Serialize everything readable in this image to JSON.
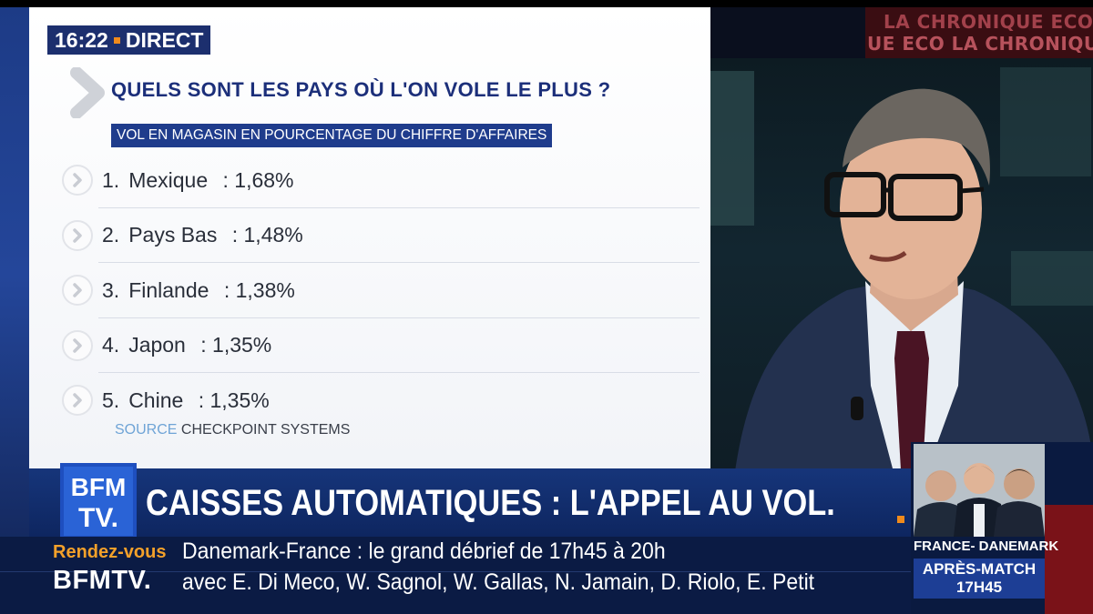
{
  "broadcast": {
    "time": "16:22",
    "live_label": "DIRECT",
    "segment_line1": "LA CHRONIQUE ECO",
    "segment_line2": "UE ECO  LA CHRONIQUE"
  },
  "infographic": {
    "title": "QUELS SONT LES PAYS OÙ L'ON VOLE LE PLUS ?",
    "subtitle": "VOL EN MAGASIN EN POURCENTAGE DU CHIFFRE D'AFFAIRES",
    "items": [
      {
        "rank": "1.",
        "country": "Mexique",
        "value": ": 1,68%"
      },
      {
        "rank": "2.",
        "country": "Pays Bas",
        "value": ": 1,48%"
      },
      {
        "rank": "3.",
        "country": "Finlande",
        "value": ": 1,38%"
      },
      {
        "rank": "4.",
        "country": "Japon",
        "value": ": 1,35%"
      },
      {
        "rank": "5.",
        "country": "Chine",
        "value": ": 1,35%"
      }
    ],
    "source_label": "SOURCE",
    "source_value": "CHECKPOINT SYSTEMS"
  },
  "banner": {
    "logo_top": "BFM",
    "logo_bottom": "TV.",
    "headline": "CAISSES AUTOMATIQUES : L'APPEL AU VOL."
  },
  "ticker": {
    "label_top": "Rendez-vous",
    "label_bottom": "BFMTV.",
    "line1": "Danemark-France : le grand débrief de 17h45 à 20h",
    "line2": "avec E. Di Meco, W. Sagnol, W. Gallas, N. Jamain, D. Riolo, E. Petit"
  },
  "promo": {
    "line1": "FRANCE- DANEMARK",
    "line2": "APRÈS-MATCH",
    "line3": "17H45"
  },
  "colors": {
    "navy": "#1c2f6e",
    "accent_orange": "#f08a1c",
    "rdv_orange": "#f4a12a",
    "promo_red": "#7a1218"
  },
  "icons": [
    "chevron-right-icon",
    "circle-chevron-icon",
    "bfmtv-logo"
  ]
}
